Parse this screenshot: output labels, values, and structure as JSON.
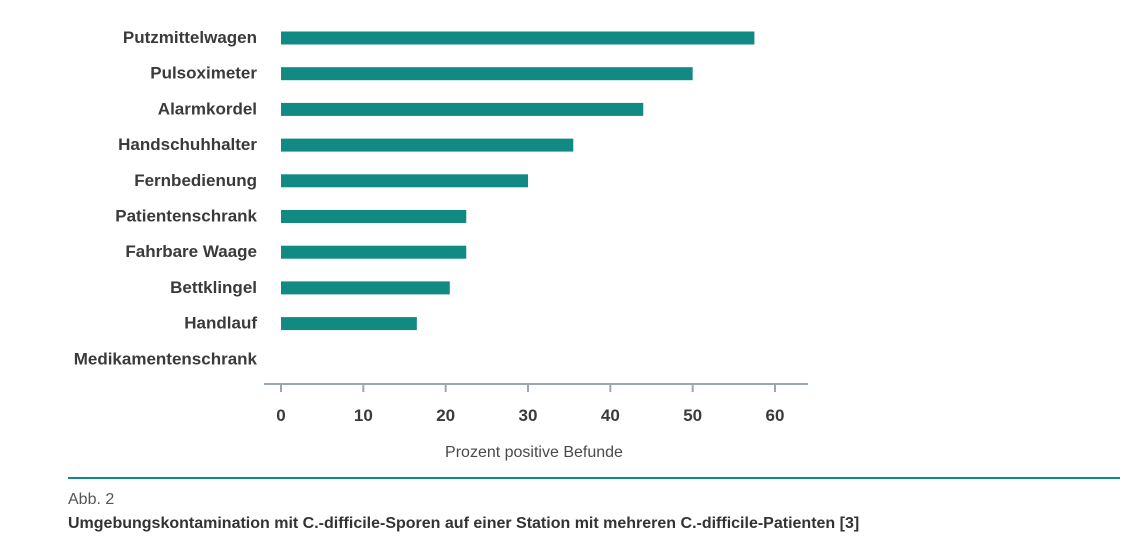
{
  "colors": {
    "bar": "#128a84",
    "axis": "#9aa7b3",
    "divider": "#128a84"
  },
  "chart_data": {
    "type": "bar",
    "orientation": "horizontal",
    "categories": [
      "Putzmittelwagen",
      "Pulsoximeter",
      "Alarmkordel",
      "Handschuhhalter",
      "Fernbedienung",
      "Patientenschrank",
      "Fahrbare Waage",
      "Bettklingel",
      "Handlauf",
      "Medikamentenschrank"
    ],
    "values": [
      57.5,
      50,
      44,
      35.5,
      30,
      22.5,
      22.5,
      20.5,
      16.5,
      0
    ],
    "xticks": [
      0,
      10,
      20,
      30,
      40,
      50,
      60
    ],
    "xlim": [
      -2,
      64
    ],
    "xlabel": "Prozent positive Befunde",
    "ylabel": ""
  },
  "caption": {
    "figure_number": "Abb. 2",
    "title": "Umgebungskontamination mit C.-difficile-Sporen auf einer Station mit mehreren C.-difficile-Patienten [3]"
  }
}
